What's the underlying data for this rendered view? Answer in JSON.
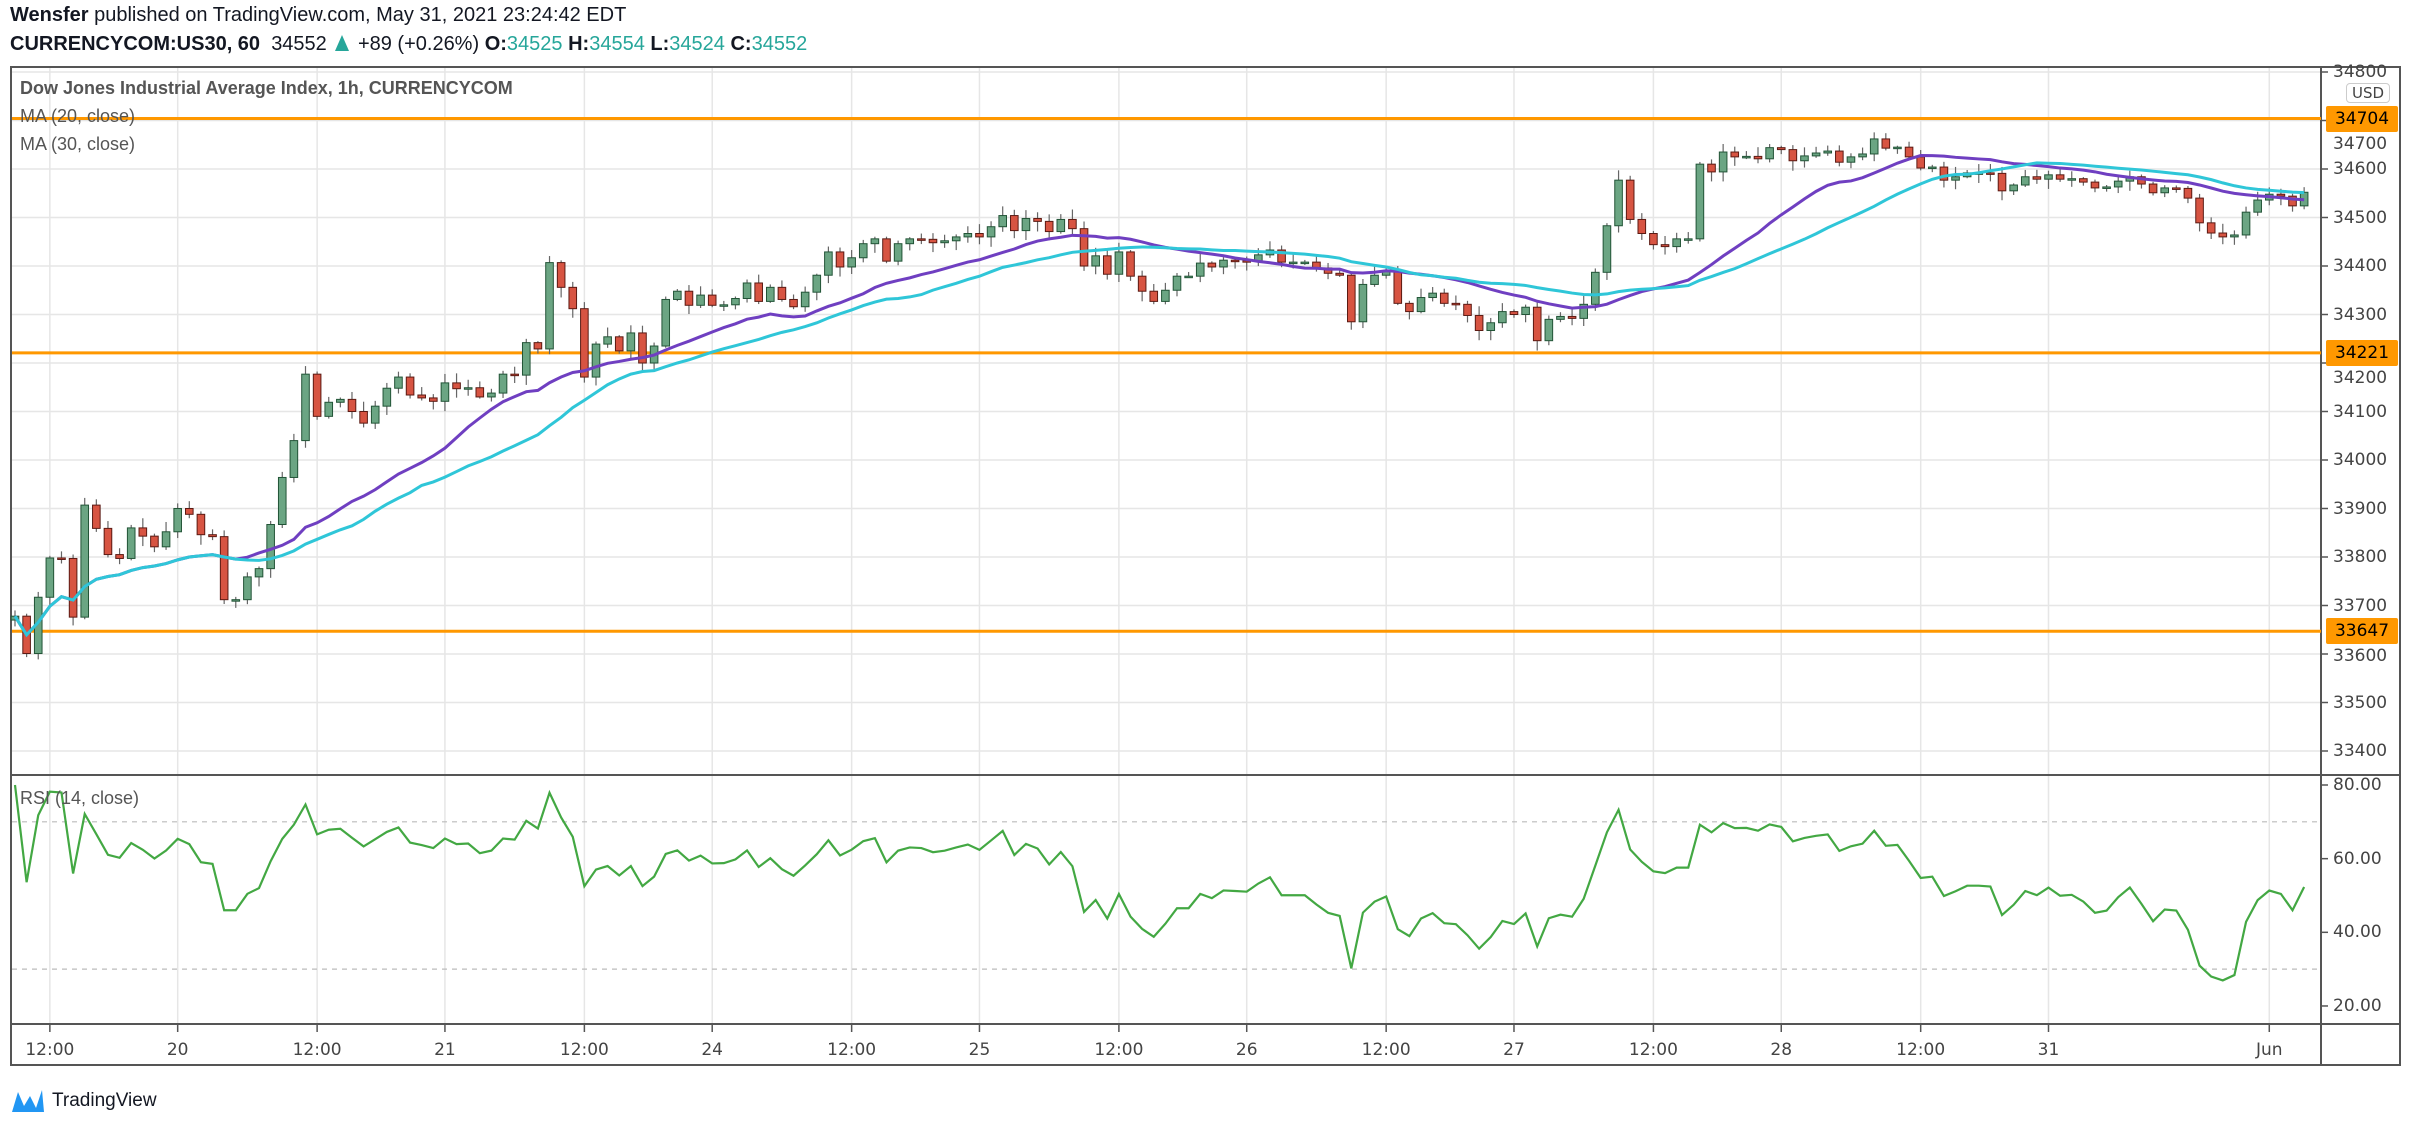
{
  "header": {
    "author": "Wensfer",
    "published_text": "published on TradingView.com, May 31, 2021 23:24:42 EDT",
    "symbol": "CURRENCYCOM:US30, 60",
    "last": "34552",
    "change": "+89 (+0.26%)",
    "o_label": "O:",
    "o": "34525",
    "h_label": "H:",
    "h": "34554",
    "l_label": "L:",
    "l": "34524",
    "c_label": "C:",
    "c": "34552"
  },
  "legend": {
    "title": "Dow Jones Industrial Average Index, 1h, CURRENCYCOM",
    "ma20": "MA (20, close)",
    "ma30": "MA (30, close)",
    "rsi": "RSI (14, close)"
  },
  "currency": "USD",
  "footer": {
    "brand": "TradingView"
  },
  "colors": {
    "up": "#6ba583",
    "up_border": "#225437",
    "down": "#d75442",
    "down_border": "#5b1a13",
    "ma20": "#6f3fc1",
    "ma30": "#2fc6d8",
    "level": "#ff9800",
    "rsi": "#43a843",
    "teal": "#26a69a"
  },
  "chart_data": {
    "type": "candlestick",
    "title": "Dow Jones Industrial Average Index, 1h, CURRENCYCOM",
    "first_open": 33670,
    "closes": [
      33678,
      33601,
      33717,
      33798,
      33797,
      33676,
      33907,
      33859,
      33805,
      33797,
      33860,
      33843,
      33821,
      33852,
      33900,
      33888,
      33846,
      33842,
      33712,
      33712,
      33759,
      33776,
      33867,
      33964,
      34040,
      34177,
      34090,
      34119,
      34125,
      34100,
      34076,
      34111,
      34148,
      34171,
      34134,
      34128,
      34121,
      34159,
      34147,
      34149,
      34130,
      34138,
      34177,
      34175,
      34242,
      34229,
      34407,
      34356,
      34312,
      34171,
      34239,
      34254,
      34225,
      34262,
      34200,
      34235,
      34331,
      34348,
      34319,
      34340,
      34319,
      34320,
      34333,
      34365,
      34327,
      34356,
      34331,
      34316,
      34346,
      34381,
      34429,
      34398,
      34417,
      34446,
      34456,
      34410,
      34446,
      34456,
      34455,
      34448,
      34452,
      34460,
      34467,
      34460,
      34481,
      34504,
      34473,
      34498,
      34492,
      34471,
      34496,
      34477,
      34400,
      34421,
      34383,
      34429,
      34379,
      34348,
      34327,
      34350,
      34379,
      34379,
      34406,
      34398,
      34412,
      34411,
      34410,
      34423,
      34433,
      34408,
      34408,
      34408,
      34396,
      34385,
      34381,
      34285,
      34362,
      34381,
      34390,
      34323,
      34306,
      34335,
      34344,
      34323,
      34321,
      34298,
      34267,
      34283,
      34306,
      34300,
      34315,
      34246,
      34290,
      34296,
      34292,
      34321,
      34387,
      34483,
      34577,
      34496,
      34467,
      34444,
      34440,
      34456,
      34456,
      34610,
      34594,
      34635,
      34625,
      34626,
      34621,
      34644,
      34640,
      34617,
      34627,
      34633,
      34637,
      34614,
      34625,
      34631,
      34662,
      34643,
      34645,
      34625,
      34602,
      34604,
      34577,
      34584,
      34592,
      34592,
      34591,
      34555,
      34567,
      34584,
      34579,
      34588,
      34579,
      34580,
      34573,
      34561,
      34563,
      34575,
      34584,
      34569,
      34551,
      34561,
      34560,
      34540,
      34489,
      34468,
      34460,
      34464,
      34511,
      34536,
      34548,
      34544,
      34524,
      34552
    ],
    "moving_averages": [
      {
        "name": "MA (20, close)",
        "period": 20
      },
      {
        "name": "MA (30, close)",
        "period": 30
      }
    ],
    "levels": [
      34704,
      34221,
      33647
    ],
    "y_axis": {
      "range": [
        33350,
        34820
      ],
      "ticks": [
        34800,
        34700,
        34600,
        34500,
        34400,
        34300,
        34200,
        34100,
        34000,
        33900,
        33800,
        33700,
        33600,
        33500,
        33400
      ]
    },
    "rsi": {
      "name": "RSI (14, close)",
      "period": 14,
      "range": [
        15,
        82
      ],
      "ticks": [
        "80.00",
        "60.00",
        "40.00",
        "20.00"
      ],
      "tick_values": [
        80,
        60,
        40,
        20
      ],
      "bands": [
        70,
        30
      ]
    },
    "x_axis": {
      "labels": [
        {
          "bar": 3,
          "text": "12:00"
        },
        {
          "bar": 14,
          "text": "20"
        },
        {
          "bar": 26,
          "text": "12:00"
        },
        {
          "bar": 37,
          "text": "21"
        },
        {
          "bar": 49,
          "text": "12:00"
        },
        {
          "bar": 60,
          "text": "24"
        },
        {
          "bar": 72,
          "text": "12:00"
        },
        {
          "bar": 83,
          "text": "25"
        },
        {
          "bar": 95,
          "text": "12:00"
        },
        {
          "bar": 106,
          "text": "26"
        },
        {
          "bar": 118,
          "text": "12:00"
        },
        {
          "bar": 129,
          "text": "27"
        },
        {
          "bar": 141,
          "text": "12:00"
        },
        {
          "bar": 152,
          "text": "28"
        },
        {
          "bar": 164,
          "text": "12:00"
        },
        {
          "bar": 175,
          "text": "31"
        },
        {
          "bar": 194,
          "text": "Jun"
        }
      ]
    }
  }
}
